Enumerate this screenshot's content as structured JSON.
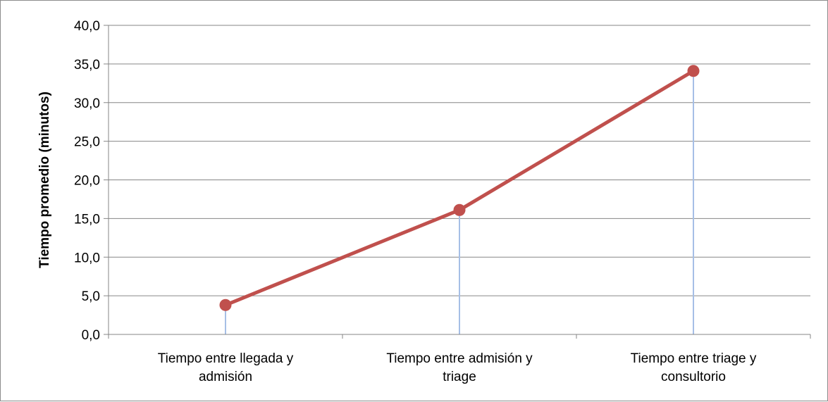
{
  "chart_data": {
    "type": "line",
    "title": "",
    "xlabel": "",
    "ylabel": "Tiempo promedio (minutos)",
    "categories": [
      [
        "Tiempo entre llegada y",
        "admisión"
      ],
      [
        "Tiempo entre admisión y",
        "triage"
      ],
      [
        "Tiempo entre triage y",
        "consultorio"
      ]
    ],
    "series": [
      {
        "values": [
          3.8,
          16.1,
          34.1
        ],
        "color": "#c0504d",
        "drop_line_color": "#a6bfe6"
      }
    ],
    "ylim": [
      0,
      40
    ],
    "yticks": [
      "0,0",
      "5,0",
      "10,0",
      "15,0",
      "20,0",
      "25,0",
      "30,0",
      "35,0",
      "40,0"
    ],
    "grid": true,
    "legend": "none",
    "colors": {
      "grid": "#868686",
      "axis": "#868686",
      "frame": "#8c8c8c"
    }
  }
}
